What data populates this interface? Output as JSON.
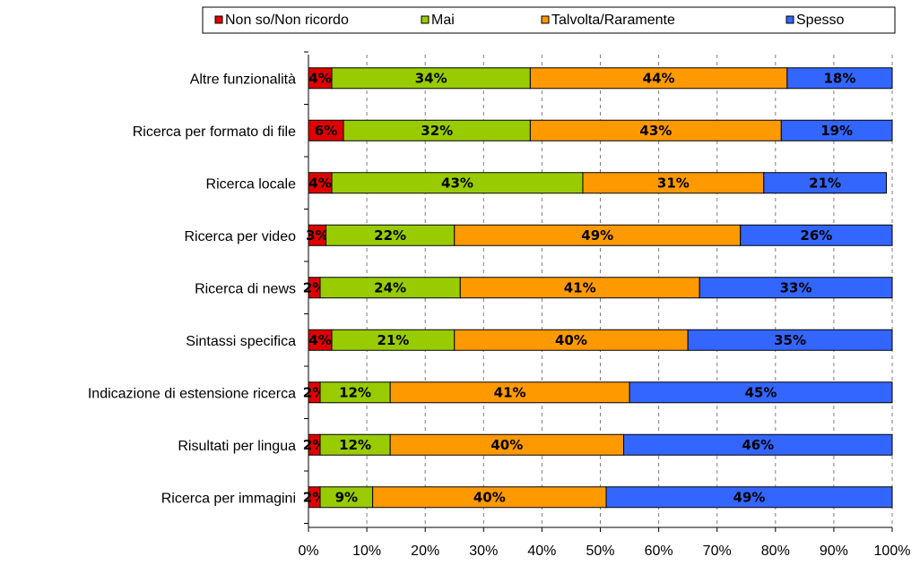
{
  "chart_data": {
    "type": "bar",
    "orientation": "horizontal",
    "stacked": true,
    "percent": true,
    "categories": [
      "Altre funzionalità",
      "Ricerca per formato di file",
      "Ricerca locale",
      "Ricerca per video",
      "Ricerca di news",
      "Sintassi specifica",
      "Indicazione di estensione ricerca",
      "Risultati per lingua",
      "Ricerca per immagini"
    ],
    "series": [
      {
        "name": "Non so/Non ricordo",
        "color": "#e00000",
        "values": [
          4,
          6,
          4,
          3,
          2,
          4,
          2,
          2,
          2
        ],
        "labels": [
          "4%",
          "6%",
          "4%",
          "3%",
          "2%",
          "4%",
          "2%",
          "2%",
          "2%"
        ]
      },
      {
        "name": "Mai",
        "color": "#99cc00",
        "values": [
          34,
          32,
          43,
          22,
          24,
          21,
          12,
          12,
          9
        ],
        "labels": [
          "34%",
          "32%",
          "43%",
          "22%",
          "24%",
          "21%",
          "12%",
          "12%",
          "9%"
        ]
      },
      {
        "name": "Talvolta/Raramente",
        "color": "#ff9900",
        "values": [
          44,
          43,
          31,
          49,
          41,
          40,
          41,
          40,
          40
        ],
        "labels": [
          "44%",
          "43%",
          "31%",
          "49%",
          "41%",
          "40%",
          "41%",
          "40%",
          "40%"
        ]
      },
      {
        "name": "Spesso",
        "color": "#3366ff",
        "values": [
          18,
          19,
          21,
          26,
          33,
          35,
          45,
          46,
          49
        ],
        "labels": [
          "18%",
          "19%",
          "21%",
          "26%",
          "33%",
          "35%",
          "45%",
          "46%",
          "49%"
        ]
      }
    ],
    "xlim": [
      0,
      100
    ],
    "xticks": [
      "0%",
      "10%",
      "20%",
      "30%",
      "40%",
      "50%",
      "60%",
      "70%",
      "80%",
      "90%",
      "100%"
    ],
    "grid": true,
    "grid_style": "dashed-vertical",
    "legend_position": "top"
  }
}
